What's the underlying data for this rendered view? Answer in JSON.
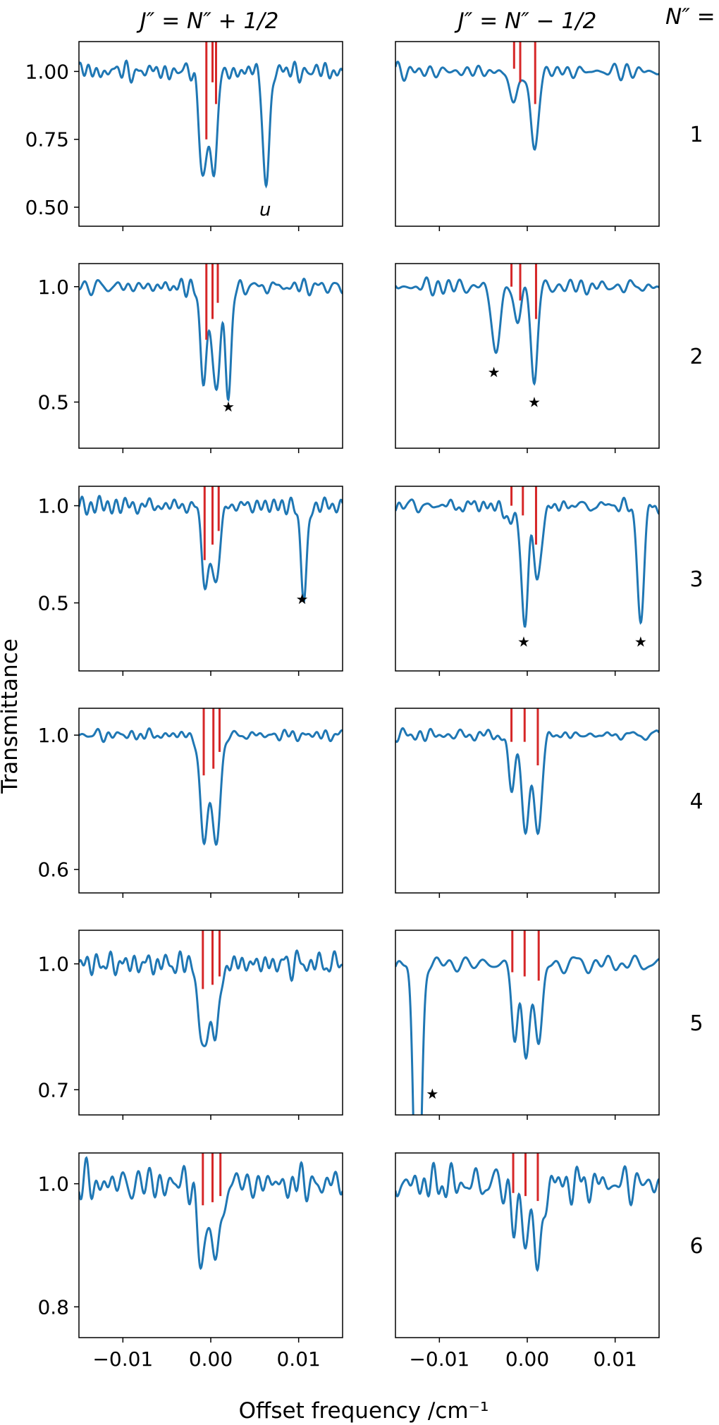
{
  "chart_data": {
    "type": "line",
    "figure_description": "Grid of transmittance spectra, 6 rows (N'' = 1..6) by 2 columns",
    "column_titles": [
      "J″ = N″ + 1/2",
      "J″ = N″ − 1/2"
    ],
    "row_header": "N″ =",
    "row_labels": [
      "1",
      "2",
      "3",
      "4",
      "5",
      "6"
    ],
    "xlabel": "Offset frequency /cm⁻¹",
    "ylabel": "Transmittance",
    "xlim": [
      -0.015,
      0.015
    ],
    "xticks": [
      -0.01,
      0.0,
      0.01
    ],
    "xtick_labels": [
      "−0.01",
      "0.00",
      "0.01"
    ],
    "series_color": "#1f77b4",
    "marker_color": "#d62728",
    "star_symbol": "★",
    "panels": [
      {
        "row": 1,
        "col": 1,
        "ylim": [
          0.43,
          1.11
        ],
        "yticks": [
          0.5,
          0.75,
          1.0
        ],
        "ytick_labels": [
          "0.50",
          "0.75",
          "1.00"
        ],
        "dips": [
          {
            "x": -0.0009,
            "depth": 0.37,
            "width": 0.0006
          },
          {
            "x": 0.0003,
            "depth": 0.38,
            "width": 0.0006
          },
          {
            "x": 0.0063,
            "depth": 0.43,
            "width": 0.0005
          }
        ],
        "noise": {
          "amp": 0.025,
          "seed": 1
        },
        "markers": [
          {
            "x": -0.0005,
            "top": 1.11,
            "bottom": 0.75
          },
          {
            "x": 0.0002,
            "top": 1.11,
            "bottom": 0.96
          },
          {
            "x": 0.0006,
            "top": 1.11,
            "bottom": 0.88
          }
        ],
        "annotations": [
          {
            "x": 0.0062,
            "y": 0.49,
            "text": "u",
            "type": "label"
          }
        ]
      },
      {
        "row": 1,
        "col": 2,
        "ylim": [
          0.43,
          1.11
        ],
        "yticks": [
          0.5,
          0.75,
          1.0
        ],
        "ytick_labels": [
          "0.50",
          "0.75",
          "1.00"
        ],
        "dips": [
          {
            "x": -0.0015,
            "depth": 0.1,
            "width": 0.0008
          },
          {
            "x": 0.0008,
            "depth": 0.3,
            "width": 0.0006
          }
        ],
        "noise": {
          "amp": 0.02,
          "seed": 2
        },
        "markers": [
          {
            "x": -0.0015,
            "top": 1.11,
            "bottom": 1.01
          },
          {
            "x": -0.0008,
            "top": 1.11,
            "bottom": 0.96
          },
          {
            "x": 0.0009,
            "top": 1.11,
            "bottom": 0.88
          }
        ],
        "annotations": []
      },
      {
        "row": 2,
        "col": 1,
        "ylim": [
          0.3,
          1.1
        ],
        "yticks": [
          0.5,
          1.0
        ],
        "ytick_labels": [
          "0.5",
          "1.0"
        ],
        "dips": [
          {
            "x": -0.0008,
            "depth": 0.38,
            "width": 0.0006
          },
          {
            "x": 0.0006,
            "depth": 0.45,
            "width": 0.0006
          },
          {
            "x": 0.002,
            "depth": 0.46,
            "width": 0.0005
          }
        ],
        "noise": {
          "amp": 0.025,
          "seed": 3
        },
        "markers": [
          {
            "x": -0.0005,
            "top": 1.1,
            "bottom": 0.77
          },
          {
            "x": 0.0002,
            "top": 1.1,
            "bottom": 0.86
          },
          {
            "x": 0.0008,
            "top": 1.1,
            "bottom": 0.93
          }
        ],
        "annotations": [
          {
            "x": 0.002,
            "y": 0.48,
            "text": "★",
            "type": "star"
          }
        ]
      },
      {
        "row": 2,
        "col": 2,
        "ylim": [
          0.3,
          1.1
        ],
        "yticks": [
          0.5,
          1.0
        ],
        "ytick_labels": [
          "0.5",
          "1.0"
        ],
        "dips": [
          {
            "x": -0.0036,
            "depth": 0.3,
            "width": 0.0006
          },
          {
            "x": -0.0012,
            "depth": 0.15,
            "width": 0.0006
          },
          {
            "x": 0.0008,
            "depth": 0.43,
            "width": 0.0005
          }
        ],
        "noise": {
          "amp": 0.025,
          "seed": 4
        },
        "markers": [
          {
            "x": -0.0018,
            "top": 1.1,
            "bottom": 1.0
          },
          {
            "x": -0.0008,
            "top": 1.1,
            "bottom": 0.94
          },
          {
            "x": 0.001,
            "top": 1.1,
            "bottom": 0.86
          }
        ],
        "annotations": [
          {
            "x": -0.0038,
            "y": 0.63,
            "text": "★",
            "type": "star"
          },
          {
            "x": 0.0008,
            "y": 0.5,
            "text": "★",
            "type": "star"
          }
        ]
      },
      {
        "row": 3,
        "col": 1,
        "ylim": [
          0.15,
          1.1
        ],
        "yticks": [
          0.5,
          1.0
        ],
        "ytick_labels": [
          "0.5",
          "1.0"
        ],
        "dips": [
          {
            "x": -0.0006,
            "depth": 0.4,
            "width": 0.0006
          },
          {
            "x": 0.0006,
            "depth": 0.4,
            "width": 0.0006
          },
          {
            "x": 0.0106,
            "depth": 0.47,
            "width": 0.0005
          }
        ],
        "noise": {
          "amp": 0.025,
          "seed": 5
        },
        "markers": [
          {
            "x": -0.0007,
            "top": 1.1,
            "bottom": 0.72
          },
          {
            "x": 0.0002,
            "top": 1.1,
            "bottom": 0.8
          },
          {
            "x": 0.0009,
            "top": 1.1,
            "bottom": 0.87
          }
        ],
        "annotations": [
          {
            "x": 0.0104,
            "y": 0.52,
            "text": "★",
            "type": "star"
          }
        ]
      },
      {
        "row": 3,
        "col": 2,
        "ylim": [
          0.15,
          1.1
        ],
        "yticks": [
          0.5,
          1.0
        ],
        "ytick_labels": [
          "0.5",
          "1.0"
        ],
        "dips": [
          {
            "x": -0.0019,
            "depth": 0.1,
            "width": 0.0007
          },
          {
            "x": -0.0003,
            "depth": 0.64,
            "width": 0.0005
          },
          {
            "x": 0.0012,
            "depth": 0.4,
            "width": 0.0006
          },
          {
            "x": 0.0129,
            "depth": 0.64,
            "width": 0.0005
          }
        ],
        "noise": {
          "amp": 0.025,
          "seed": 6
        },
        "markers": [
          {
            "x": -0.0018,
            "top": 1.1,
            "bottom": 1.0
          },
          {
            "x": -0.0005,
            "top": 1.1,
            "bottom": 0.95
          },
          {
            "x": 0.001,
            "top": 1.1,
            "bottom": 0.8
          }
        ],
        "annotations": [
          {
            "x": -0.0004,
            "y": 0.3,
            "text": "★",
            "type": "star"
          },
          {
            "x": 0.0129,
            "y": 0.3,
            "text": "★",
            "type": "star"
          }
        ]
      },
      {
        "row": 4,
        "col": 1,
        "ylim": [
          0.53,
          1.08
        ],
        "yticks": [
          0.6,
          1.0
        ],
        "ytick_labels": [
          "0.6",
          "1.0"
        ],
        "dips": [
          {
            "x": -0.0008,
            "depth": 0.32,
            "width": 0.0006
          },
          {
            "x": 0.0006,
            "depth": 0.32,
            "width": 0.0007
          }
        ],
        "noise": {
          "amp": 0.015,
          "seed": 7
        },
        "markers": [
          {
            "x": -0.0008,
            "top": 1.08,
            "bottom": 0.88
          },
          {
            "x": 0.0003,
            "top": 1.08,
            "bottom": 0.9
          },
          {
            "x": 0.001,
            "top": 1.08,
            "bottom": 0.95
          }
        ],
        "annotations": []
      },
      {
        "row": 4,
        "col": 2,
        "ylim": [
          0.53,
          1.08
        ],
        "yticks": [
          0.6,
          1.0
        ],
        "ytick_labels": [
          "0.6",
          "1.0"
        ],
        "dips": [
          {
            "x": -0.0018,
            "depth": 0.17,
            "width": 0.0005
          },
          {
            "x": -0.0002,
            "depth": 0.29,
            "width": 0.0006
          },
          {
            "x": 0.0012,
            "depth": 0.3,
            "width": 0.0006
          }
        ],
        "noise": {
          "amp": 0.012,
          "seed": 8
        },
        "markers": [
          {
            "x": -0.0018,
            "top": 1.08,
            "bottom": 0.98
          },
          {
            "x": -0.0003,
            "top": 1.08,
            "bottom": 0.98
          },
          {
            "x": 0.0012,
            "top": 1.08,
            "bottom": 0.91
          }
        ],
        "annotations": []
      },
      {
        "row": 5,
        "col": 1,
        "ylim": [
          0.64,
          1.08
        ],
        "yticks": [
          0.7,
          1.0
        ],
        "ytick_labels": [
          "0.7",
          "1.0"
        ],
        "dips": [
          {
            "x": -0.0009,
            "depth": 0.23,
            "width": 0.0006
          },
          {
            "x": 0.0005,
            "depth": 0.18,
            "width": 0.0007
          }
        ],
        "noise": {
          "amp": 0.018,
          "seed": 9
        },
        "markers": [
          {
            "x": -0.0009,
            "top": 1.08,
            "bottom": 0.94
          },
          {
            "x": 0.0002,
            "top": 1.08,
            "bottom": 0.95
          },
          {
            "x": 0.001,
            "top": 1.08,
            "bottom": 0.97
          }
        ],
        "annotations": []
      },
      {
        "row": 5,
        "col": 2,
        "ylim": [
          0.64,
          1.08
        ],
        "yticks": [
          0.7,
          1.0
        ],
        "ytick_labels": [
          "0.7",
          "1.0"
        ],
        "dips": [
          {
            "x": -0.0014,
            "depth": 0.18,
            "width": 0.0005
          },
          {
            "x": -0.0002,
            "depth": 0.21,
            "width": 0.0006
          },
          {
            "x": 0.0013,
            "depth": 0.2,
            "width": 0.0006
          }
        ],
        "strong_dip": {
          "x": -0.0125,
          "depth": 0.7,
          "width": 0.0006
        },
        "noise": {
          "amp": 0.018,
          "seed": 10
        },
        "markers": [
          {
            "x": -0.0017,
            "top": 1.08,
            "bottom": 0.98
          },
          {
            "x": -0.0003,
            "top": 1.08,
            "bottom": 0.97
          },
          {
            "x": 0.0013,
            "top": 1.08,
            "bottom": 0.96
          }
        ],
        "annotations": [
          {
            "x": -0.0108,
            "y": 0.69,
            "text": "★",
            "type": "star"
          }
        ]
      },
      {
        "row": 6,
        "col": 1,
        "ylim": [
          0.75,
          1.05
        ],
        "yticks": [
          0.8,
          1.0
        ],
        "ytick_labels": [
          "0.8",
          "1.0"
        ],
        "dips": [
          {
            "x": -0.001,
            "depth": 0.14,
            "width": 0.0006
          },
          {
            "x": 0.0006,
            "depth": 0.12,
            "width": 0.0008
          }
        ],
        "noise": {
          "amp": 0.02,
          "seed": 11
        },
        "markers": [
          {
            "x": -0.0009,
            "top": 1.05,
            "bottom": 0.965
          },
          {
            "x": 0.0002,
            "top": 1.05,
            "bottom": 0.97
          },
          {
            "x": 0.0011,
            "top": 1.05,
            "bottom": 0.98
          }
        ],
        "annotations": []
      },
      {
        "row": 6,
        "col": 2,
        "ylim": [
          0.75,
          1.05
        ],
        "yticks": [
          0.8,
          1.0
        ],
        "ytick_labels": [
          "0.8",
          "1.0"
        ],
        "dips": [
          {
            "x": -0.0015,
            "depth": 0.07,
            "width": 0.0005
          },
          {
            "x": -0.0003,
            "depth": 0.08,
            "width": 0.0006
          },
          {
            "x": 0.0012,
            "depth": 0.15,
            "width": 0.0006
          }
        ],
        "noise": {
          "amp": 0.02,
          "seed": 12
        },
        "markers": [
          {
            "x": -0.0016,
            "top": 1.05,
            "bottom": 0.985
          },
          {
            "x": -0.0002,
            "top": 1.05,
            "bottom": 0.98
          },
          {
            "x": 0.0012,
            "top": 1.05,
            "bottom": 0.972
          }
        ],
        "annotations": []
      }
    ]
  }
}
